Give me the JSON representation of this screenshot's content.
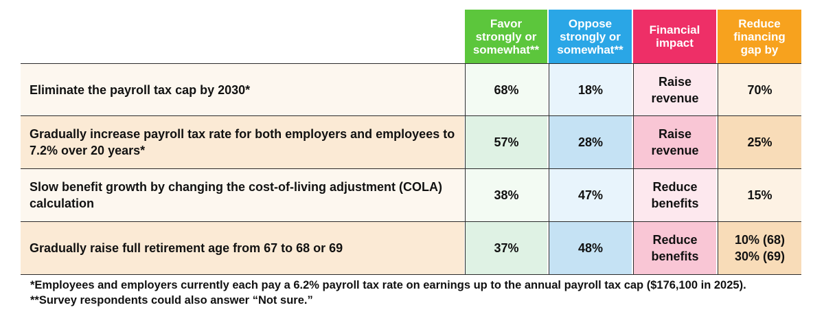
{
  "chart_data": {
    "type": "table",
    "columns": [
      {
        "key": "favor",
        "label_lines": [
          "Favor",
          "strongly or",
          "somewhat**"
        ],
        "color": "#5cc63c"
      },
      {
        "key": "oppose",
        "label_lines": [
          "Oppose",
          "strongly or",
          "somewhat**"
        ],
        "color": "#2aa6e6"
      },
      {
        "key": "financial_impact",
        "label_lines": [
          "Financial",
          "impact"
        ],
        "color": "#ee2f67"
      },
      {
        "key": "reduce_gap",
        "label_lines": [
          "Reduce",
          "financing",
          "gap by"
        ],
        "color": "#f7a21e"
      }
    ],
    "rows": [
      {
        "label": "Eliminate the payroll tax cap by 2030*",
        "favor": "68%",
        "oppose": "18%",
        "financial_impact_lines": [
          "Raise",
          "revenue"
        ],
        "reduce_gap_lines": [
          "70%"
        ]
      },
      {
        "label": "Gradually increase payroll tax rate for both employers and employees to 7.2% over 20 years*",
        "favor": "57%",
        "oppose": "28%",
        "financial_impact_lines": [
          "Raise",
          "revenue"
        ],
        "reduce_gap_lines": [
          "25%"
        ]
      },
      {
        "label": "Slow benefit growth by changing the cost-of-living adjustment (COLA) calculation",
        "favor": "38%",
        "oppose": "47%",
        "financial_impact_lines": [
          "Reduce",
          "benefits"
        ],
        "reduce_gap_lines": [
          "15%"
        ]
      },
      {
        "label": "Gradually raise full retirement age from 67 to 68 or 69",
        "favor": "37%",
        "oppose": "48%",
        "financial_impact_lines": [
          "Reduce",
          "benefits"
        ],
        "reduce_gap_lines": [
          "10% (68)",
          "30% (69)"
        ]
      }
    ],
    "footnotes": [
      "*Employees and employers currently each pay a 6.2% payroll tax rate on earnings up to the annual payroll tax cap ($176,100 in 2025).",
      "**Survey respondents could also answer “Not sure.”"
    ]
  }
}
